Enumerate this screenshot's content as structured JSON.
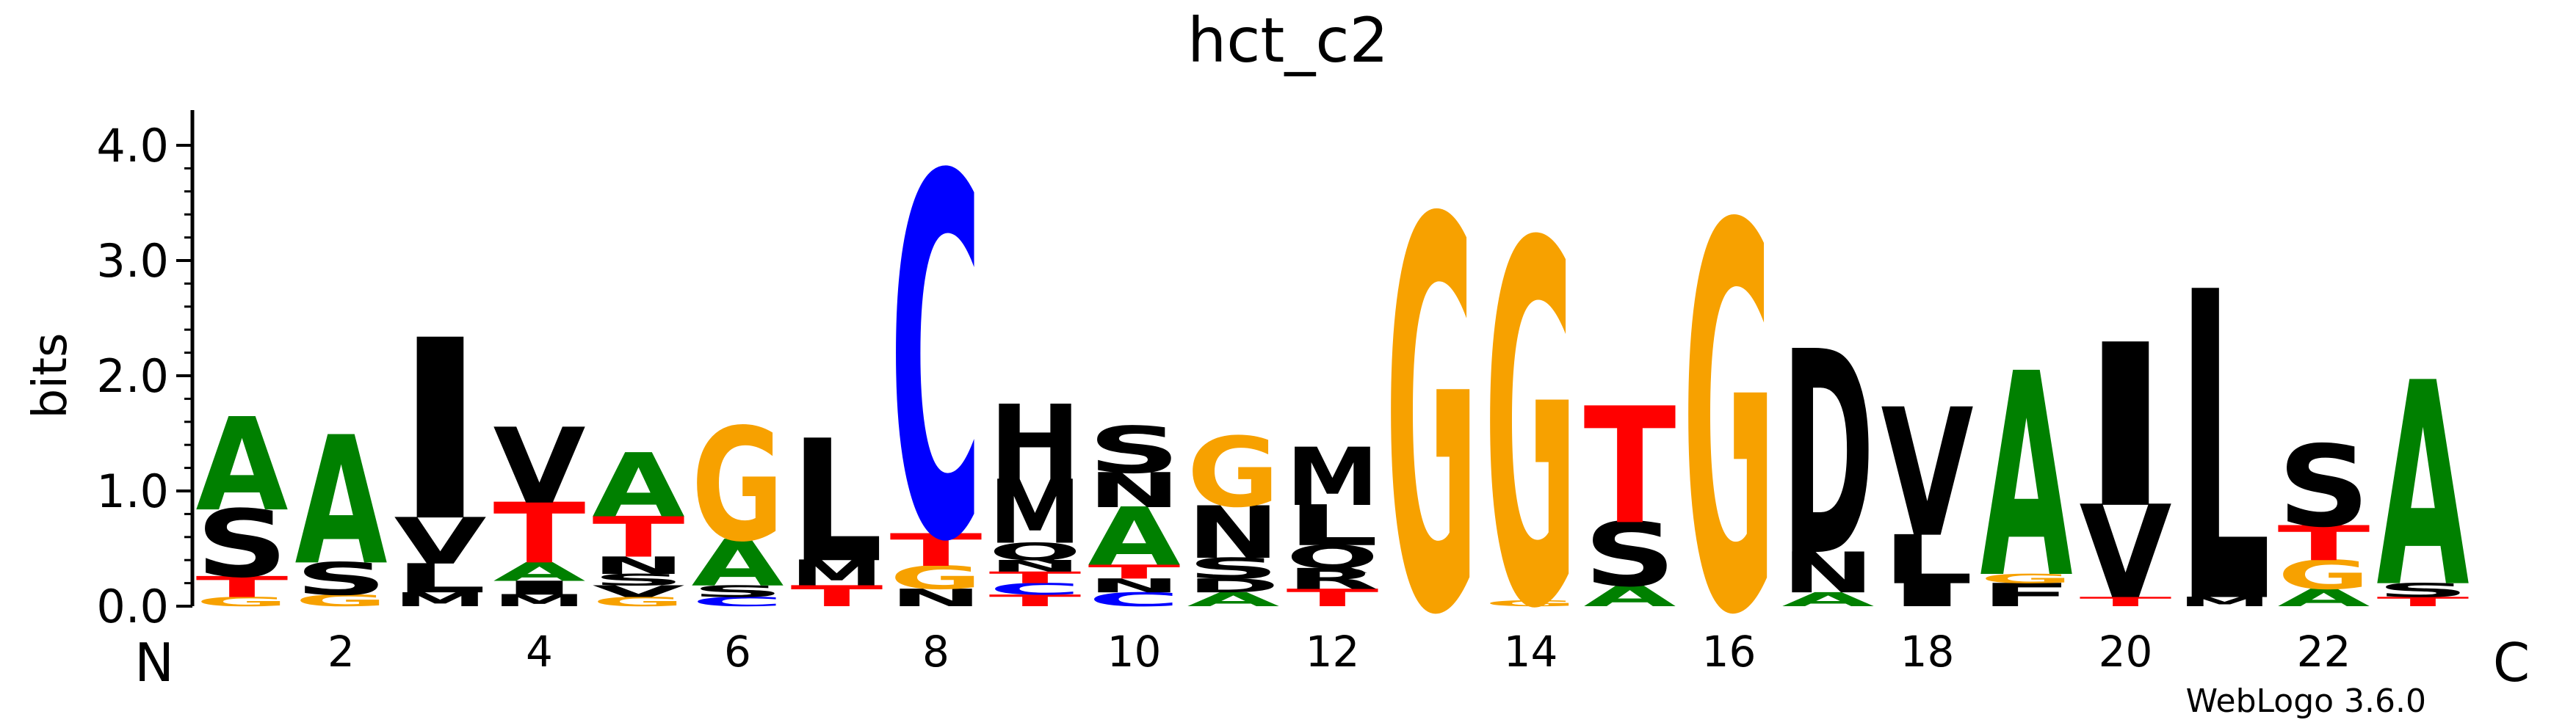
{
  "chart_data": {
    "type": "sequence-logo",
    "title": "hct_c2",
    "ylabel": "bits",
    "ylim": [
      0,
      4.3
    ],
    "yticks": [
      "0.0",
      "1.0",
      "2.0",
      "3.0",
      "4.0"
    ],
    "xticks": [
      "2",
      "4",
      "6",
      "8",
      "10",
      "12",
      "14",
      "16",
      "18",
      "20",
      "22"
    ],
    "n_terminus_label": "N",
    "c_terminus_label": "C",
    "credit": "WebLogo 3.6.0",
    "colors": {
      "G": "#f7a100",
      "S": "#000000",
      "T": "#ff0000",
      "C": "#0000ff",
      "A": "#008000",
      "V": "#000000",
      "L": "#000000",
      "I": "#000000",
      "M": "#000000",
      "N": "#000000",
      "Q": "#000000",
      "H": "#000000",
      "D": "#000000",
      "R": "#000000",
      "K": "#000000",
      "F": "#000000",
      "Y": "#000000"
    },
    "positions": [
      {
        "pos": 1,
        "stack": [
          [
            "G",
            0.08
          ],
          [
            "T",
            0.18
          ],
          [
            "S",
            0.58
          ],
          [
            "A",
            0.8
          ]
        ]
      },
      {
        "pos": 2,
        "stack": [
          [
            "G",
            0.1
          ],
          [
            "S",
            0.28
          ],
          [
            "A",
            1.1
          ]
        ]
      },
      {
        "pos": 3,
        "stack": [
          [
            "M",
            0.12
          ],
          [
            "L",
            0.25
          ],
          [
            "V",
            0.4
          ],
          [
            "I",
            1.55
          ]
        ]
      },
      {
        "pos": 4,
        "stack": [
          [
            "M",
            0.1
          ],
          [
            "I",
            0.12
          ],
          [
            "A",
            0.16
          ],
          [
            "T",
            0.52
          ],
          [
            "V",
            0.65
          ]
        ]
      },
      {
        "pos": 5,
        "stack": [
          [
            "G",
            0.08
          ],
          [
            "V",
            0.1
          ],
          [
            "S",
            0.1
          ],
          [
            "N",
            0.15
          ],
          [
            "T",
            0.35
          ],
          [
            "A",
            0.55
          ]
        ]
      },
      {
        "pos": 6,
        "stack": [
          [
            "C",
            0.08
          ],
          [
            "S",
            0.1
          ],
          [
            "A",
            0.4
          ],
          [
            "G",
            0.97
          ]
        ]
      },
      {
        "pos": 7,
        "stack": [
          [
            "T",
            0.18
          ],
          [
            "M",
            0.22
          ],
          [
            "L",
            1.05
          ]
        ]
      },
      {
        "pos": 8,
        "stack": [
          [
            "N",
            0.15
          ],
          [
            "G",
            0.2
          ],
          [
            "T",
            0.28
          ],
          [
            "C",
            3.1
          ]
        ]
      },
      {
        "pos": 9,
        "stack": [
          [
            "T",
            0.1
          ],
          [
            "C",
            0.1
          ],
          [
            "T",
            0.1
          ],
          [
            "N",
            0.1
          ],
          [
            "Q",
            0.15
          ],
          [
            "M",
            0.55
          ],
          [
            "H",
            0.65
          ]
        ]
      },
      {
        "pos": 10,
        "stack": [
          [
            "C",
            0.12
          ],
          [
            "N",
            0.12
          ],
          [
            "T",
            0.12
          ],
          [
            "A",
            0.5
          ],
          [
            "N",
            0.3
          ],
          [
            "S",
            0.4
          ]
        ]
      },
      {
        "pos": 11,
        "stack": [
          [
            "A",
            0.12
          ],
          [
            "D",
            0.12
          ],
          [
            "S",
            0.18
          ],
          [
            "N",
            0.45
          ],
          [
            "G",
            0.6
          ]
        ]
      },
      {
        "pos": 12,
        "stack": [
          [
            "T",
            0.15
          ],
          [
            "R",
            0.18
          ],
          [
            "Q",
            0.2
          ],
          [
            "L",
            0.35
          ],
          [
            "M",
            0.5
          ]
        ]
      },
      {
        "pos": 13,
        "stack": [
          [
            "G",
            3.35
          ]
        ]
      },
      {
        "pos": 14,
        "stack": [
          [
            "G",
            0.05
          ],
          [
            "G",
            3.1
          ]
        ]
      },
      {
        "pos": 15,
        "stack": [
          [
            "A",
            0.18
          ],
          [
            "S",
            0.55
          ],
          [
            "T",
            1.0
          ]
        ]
      },
      {
        "pos": 16,
        "stack": [
          [
            "G",
            3.3
          ]
        ]
      },
      {
        "pos": 17,
        "stack": [
          [
            "A",
            0.12
          ],
          [
            "N",
            0.35
          ],
          [
            "D",
            1.75
          ]
        ]
      },
      {
        "pos": 18,
        "stack": [
          [
            "I",
            0.2
          ],
          [
            "L",
            0.42
          ],
          [
            "V",
            1.1
          ]
        ]
      },
      {
        "pos": 19,
        "stack": [
          [
            "F",
            0.2
          ],
          [
            "G",
            0.08
          ],
          [
            "A",
            1.75
          ]
        ]
      },
      {
        "pos": 20,
        "stack": [
          [
            "T",
            0.08
          ],
          [
            "V",
            0.8
          ],
          [
            "I",
            1.4
          ]
        ]
      },
      {
        "pos": 21,
        "stack": [
          [
            "M",
            0.08
          ],
          [
            "L",
            2.65
          ]
        ]
      },
      {
        "pos": 22,
        "stack": [
          [
            "A",
            0.15
          ],
          [
            "G",
            0.25
          ],
          [
            "T",
            0.3
          ],
          [
            "S",
            0.7
          ]
        ]
      },
      {
        "pos": 23,
        "stack": [
          [
            "T",
            0.08
          ],
          [
            "S",
            0.12
          ],
          [
            "A",
            1.75
          ]
        ]
      }
    ]
  }
}
